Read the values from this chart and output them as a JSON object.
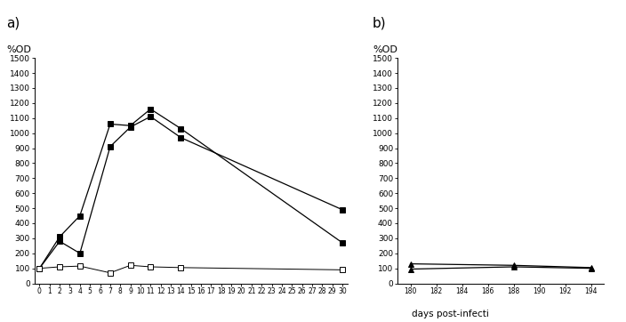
{
  "panel_a": {
    "series1_x": [
      0,
      2,
      4,
      7,
      9,
      11,
      14,
      30
    ],
    "series1_y": [
      100,
      310,
      450,
      1060,
      1050,
      1160,
      1030,
      270
    ],
    "series2_x": [
      0,
      2,
      4,
      7,
      9,
      11,
      14,
      30
    ],
    "series2_y": [
      100,
      280,
      200,
      910,
      1040,
      1110,
      970,
      490
    ],
    "series3_x": [
      0,
      2,
      4,
      7,
      9,
      11,
      14,
      30
    ],
    "series3_y": [
      100,
      110,
      115,
      70,
      120,
      110,
      105,
      90
    ],
    "xlabel_ticks": [
      0,
      1,
      2,
      3,
      4,
      5,
      6,
      7,
      8,
      9,
      10,
      11,
      12,
      13,
      14,
      15,
      16,
      17,
      18,
      19,
      20,
      21,
      22,
      23,
      24,
      25,
      26,
      27,
      28,
      29,
      30
    ],
    "ylabel": "%OD",
    "ylim": [
      0,
      1500
    ],
    "yticks": [
      0,
      100,
      200,
      300,
      400,
      500,
      600,
      700,
      800,
      900,
      1000,
      1100,
      1200,
      1300,
      1400,
      1500
    ],
    "label": "a)"
  },
  "panel_b": {
    "series1_x": [
      180,
      188,
      194
    ],
    "series1_y": [
      130,
      120,
      105
    ],
    "series2_x": [
      180,
      188,
      194
    ],
    "series2_y": [
      95,
      110,
      100
    ],
    "xlabel_ticks": [
      180,
      182,
      184,
      186,
      188,
      190,
      192,
      194
    ],
    "xlabel": "days post-infecti",
    "ylabel": "%OD",
    "ylim": [
      0,
      1500
    ],
    "yticks": [
      0,
      100,
      200,
      300,
      400,
      500,
      600,
      700,
      800,
      900,
      1000,
      1100,
      1200,
      1300,
      1400,
      1500
    ],
    "label": "b)"
  }
}
